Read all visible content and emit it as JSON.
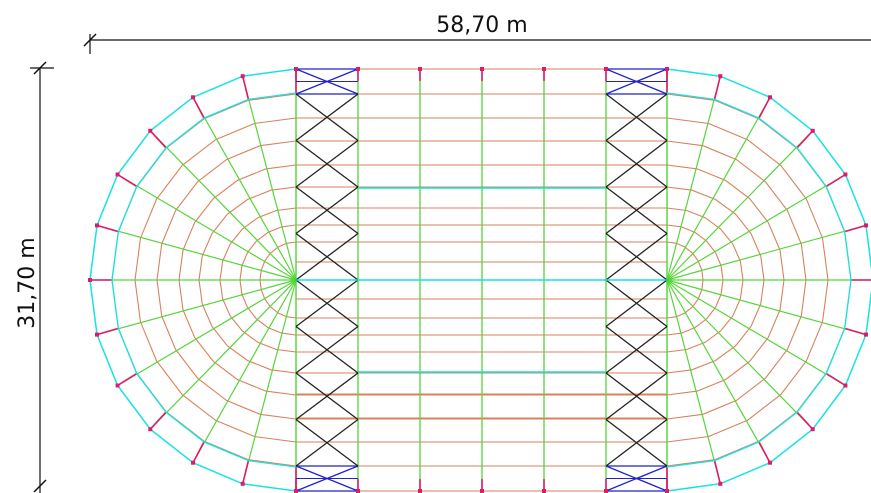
{
  "dimensions": {
    "length": "58,70 m",
    "width": "31,70 m"
  },
  "colors": {
    "outer_edge": "#14e4e4",
    "ring_member": "#d9825c",
    "radial_member": "#55d63a",
    "column_vertical": "#55d63a",
    "bracing": "#222222",
    "end_bracing": "#2222cc",
    "node": "#e01a6a",
    "dimension_line": "#111111"
  }
}
